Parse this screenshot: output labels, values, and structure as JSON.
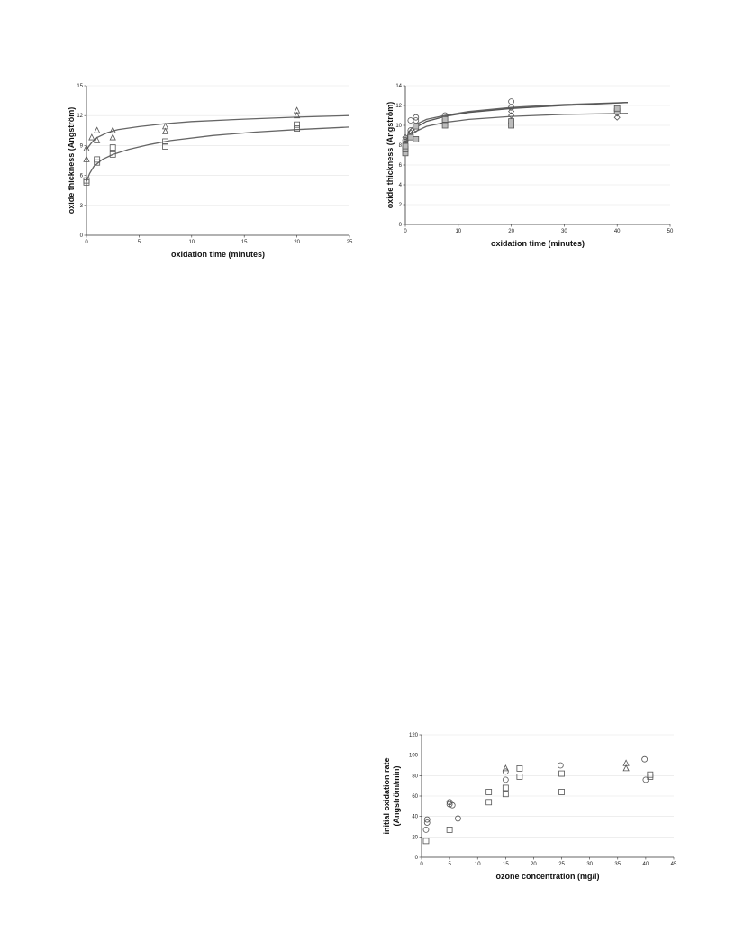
{
  "chart_data": [
    {
      "type": "scatter",
      "title": "",
      "xlabel": "oxidation time (minutes)",
      "ylabel": "oxide thickness (Angström)",
      "xlim": [
        0,
        25
      ],
      "ylim": [
        0,
        15
      ],
      "xticks": [
        0,
        5,
        10,
        15,
        20,
        25
      ],
      "yticks": [
        0,
        3,
        6,
        9,
        12,
        15
      ],
      "grid": "horizontal",
      "series": [
        {
          "marker": "triangle",
          "points": [
            [
              0,
              7.6
            ],
            [
              0,
              8.7
            ],
            [
              0.5,
              9.8
            ],
            [
              1,
              10.5
            ],
            [
              1,
              9.5
            ],
            [
              2.5,
              10.5
            ],
            [
              2.5,
              9.8
            ],
            [
              7.5,
              10.9
            ],
            [
              7.5,
              10.4
            ],
            [
              20,
              12.5
            ],
            [
              20,
              12.0
            ]
          ],
          "fit": [
            [
              0,
              8.6
            ],
            [
              0.5,
              9.3
            ],
            [
              1,
              9.8
            ],
            [
              2,
              10.3
            ],
            [
              3,
              10.6
            ],
            [
              5,
              10.9
            ],
            [
              7.5,
              11.2
            ],
            [
              10,
              11.4
            ],
            [
              15,
              11.65
            ],
            [
              20,
              11.85
            ],
            [
              25,
              12.0
            ]
          ]
        },
        {
          "marker": "square",
          "points": [
            [
              0,
              5.3
            ],
            [
              0,
              5.5
            ],
            [
              1,
              7.3
            ],
            [
              1,
              7.6
            ],
            [
              2.5,
              8.1
            ],
            [
              2.5,
              8.8
            ],
            [
              7.5,
              8.9
            ],
            [
              7.5,
              9.4
            ],
            [
              20,
              10.7
            ],
            [
              20,
              11.1
            ]
          ],
          "fit": [
            [
              0,
              5.4
            ],
            [
              0.3,
              6.2
            ],
            [
              0.7,
              6.9
            ],
            [
              1.5,
              7.6
            ],
            [
              2.5,
              8.1
            ],
            [
              4,
              8.6
            ],
            [
              6,
              9.1
            ],
            [
              8,
              9.5
            ],
            [
              12,
              10.0
            ],
            [
              16,
              10.35
            ],
            [
              20,
              10.6
            ],
            [
              25,
              10.85
            ]
          ]
        }
      ]
    },
    {
      "type": "scatter",
      "title": "",
      "xlabel": "oxidation time (minutes)",
      "ylabel": "oxide thickness (Angström)",
      "xlim": [
        0,
        50
      ],
      "ylim": [
        0,
        14
      ],
      "xticks": [
        0,
        10,
        20,
        30,
        40,
        50
      ],
      "yticks": [
        0,
        2,
        4,
        6,
        8,
        10,
        12,
        14
      ],
      "grid": "horizontal",
      "series": [
        {
          "marker": "circle",
          "points": [
            [
              0,
              7.6
            ],
            [
              0,
              8.5
            ],
            [
              1,
              9.5
            ],
            [
              1,
              10.5
            ],
            [
              2,
              10.5
            ],
            [
              2,
              10.8
            ],
            [
              7.5,
              11.0
            ],
            [
              7.5,
              10.5
            ],
            [
              20,
              12.4
            ],
            [
              20,
              11.8
            ],
            [
              40,
              11.5
            ]
          ],
          "fit": [
            [
              0,
              7.8
            ],
            [
              0.5,
              9.1
            ],
            [
              1,
              9.6
            ],
            [
              2,
              10.1
            ],
            [
              4,
              10.6
            ],
            [
              7.5,
              11.0
            ],
            [
              12,
              11.4
            ],
            [
              20,
              11.8
            ],
            [
              30,
              12.1
            ],
            [
              42,
              12.3
            ]
          ]
        },
        {
          "marker": "diamond",
          "points": [
            [
              0,
              8.2
            ],
            [
              0,
              8.8
            ],
            [
              1,
              9.3
            ],
            [
              2,
              9.6
            ],
            [
              7.5,
              10.2
            ],
            [
              7.5,
              10.6
            ],
            [
              20,
              11.0
            ],
            [
              20,
              11.4
            ],
            [
              40,
              10.8
            ],
            [
              40,
              11.2
            ]
          ],
          "fit": [
            [
              0,
              7.5
            ],
            [
              0.5,
              8.6
            ],
            [
              1,
              9.0
            ],
            [
              2,
              9.4
            ],
            [
              4,
              9.9
            ],
            [
              7.5,
              10.3
            ],
            [
              12,
              10.6
            ],
            [
              20,
              10.9
            ],
            [
              30,
              11.1
            ],
            [
              42,
              11.2
            ]
          ]
        },
        {
          "marker": "square",
          "points": [
            [
              0,
              7.2
            ],
            [
              0,
              7.6
            ],
            [
              0,
              7.9
            ],
            [
              1,
              8.8
            ],
            [
              2,
              8.6
            ],
            [
              2,
              9.9
            ],
            [
              7.5,
              10.0
            ],
            [
              7.5,
              10.6
            ],
            [
              20,
              10.0
            ],
            [
              20,
              10.4
            ],
            [
              40,
              11.4
            ],
            [
              40,
              11.7
            ]
          ],
          "fit": [
            [
              0,
              7.2
            ],
            [
              0.5,
              8.5
            ],
            [
              1,
              9.2
            ],
            [
              2,
              9.8
            ],
            [
              4,
              10.4
            ],
            [
              7.5,
              10.9
            ],
            [
              12,
              11.3
            ],
            [
              20,
              11.7
            ],
            [
              30,
              12.0
            ],
            [
              42,
              12.3
            ]
          ]
        }
      ]
    },
    {
      "type": "scatter",
      "title": "",
      "xlabel": "ozone concentration (mg/l)",
      "ylabel": "initial oxidation rate (Angström/min)",
      "ylabel_lines": [
        "initial oxidation rate",
        "(Angström/min)"
      ],
      "xlim": [
        0,
        45
      ],
      "ylim": [
        0,
        120
      ],
      "xticks": [
        0,
        5,
        10,
        15,
        20,
        25,
        30,
        35,
        40,
        45
      ],
      "yticks": [
        0,
        20,
        40,
        60,
        80,
        100,
        120
      ],
      "grid": "horizontal",
      "series": [
        {
          "marker": "circle",
          "points": [
            [
              0.8,
              27
            ],
            [
              1,
              34
            ],
            [
              1,
              37
            ],
            [
              5,
              52
            ],
            [
              5,
              54
            ],
            [
              5.5,
              51
            ],
            [
              6.5,
              38
            ],
            [
              15,
              76
            ],
            [
              15,
              84
            ],
            [
              24.8,
              90
            ],
            [
              39.8,
              96
            ],
            [
              40,
              76
            ]
          ]
        },
        {
          "marker": "square",
          "points": [
            [
              0.8,
              16
            ],
            [
              5,
              27
            ],
            [
              12,
              54
            ],
            [
              12,
              64
            ],
            [
              15,
              62
            ],
            [
              15,
              68
            ],
            [
              17.5,
              79
            ],
            [
              17.5,
              87
            ],
            [
              25,
              82
            ],
            [
              25,
              64
            ],
            [
              40.8,
              79
            ],
            [
              40.8,
              81
            ]
          ]
        },
        {
          "marker": "triangle",
          "points": [
            [
              15,
              87
            ],
            [
              36.5,
              87
            ],
            [
              36.5,
              92
            ]
          ]
        }
      ]
    }
  ]
}
